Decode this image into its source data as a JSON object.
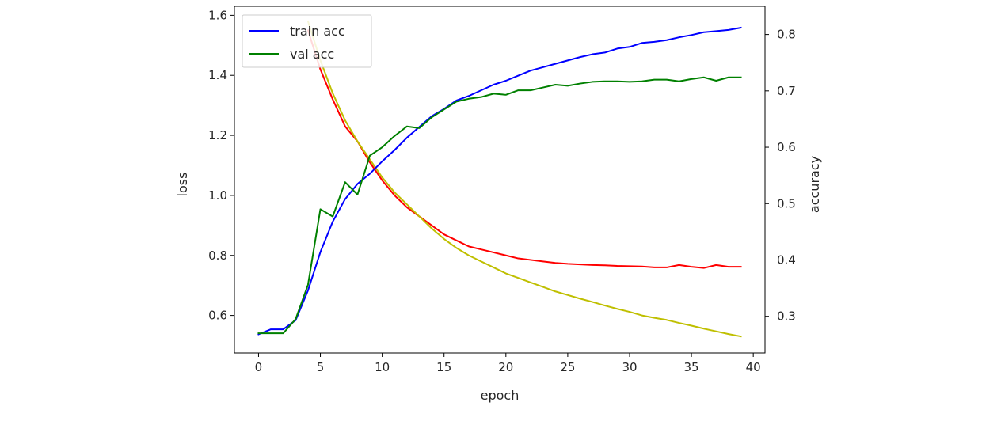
{
  "chart_data": {
    "type": "line",
    "xlabel": "epoch",
    "ylabel_left": "loss",
    "ylabel_right": "accuracy",
    "xlim": [
      -1.95,
      40.95
    ],
    "ylim_left": [
      0.475,
      1.63
    ],
    "ylim_right": [
      0.235,
      0.85
    ],
    "x_ticks": [
      0,
      5,
      10,
      15,
      20,
      25,
      30,
      35,
      40
    ],
    "y_ticks_left": [
      0.6,
      0.8,
      1.0,
      1.2,
      1.4,
      1.6
    ],
    "y_ticks_right": [
      0.3,
      0.4,
      0.5,
      0.6,
      0.7,
      0.8
    ],
    "grid": false,
    "legend_position": "top-left",
    "x": [
      0,
      1,
      2,
      3,
      4,
      5,
      6,
      7,
      8,
      9,
      10,
      11,
      12,
      13,
      14,
      15,
      16,
      17,
      18,
      19,
      20,
      21,
      22,
      23,
      24,
      25,
      26,
      27,
      28,
      29,
      30,
      31,
      32,
      33,
      34,
      35,
      36,
      37,
      38,
      39
    ],
    "series": [
      {
        "name": "",
        "axis": "left",
        "color": "#ff0000",
        "values": [
          null,
          null,
          null,
          null,
          1.55,
          1.42,
          1.32,
          1.23,
          1.18,
          1.11,
          1.05,
          1.0,
          0.96,
          0.93,
          0.9,
          0.87,
          0.85,
          0.83,
          0.82,
          0.81,
          0.8,
          0.79,
          0.785,
          0.78,
          0.775,
          0.772,
          0.77,
          0.768,
          0.767,
          0.765,
          0.764,
          0.763,
          0.76,
          0.76,
          0.768,
          0.762,
          0.758,
          0.768,
          0.762,
          0.762
        ]
      },
      {
        "name": "",
        "axis": "left",
        "color": "#bfbf00",
        "values": [
          null,
          null,
          null,
          null,
          1.58,
          1.45,
          1.34,
          1.25,
          1.18,
          1.12,
          1.06,
          1.01,
          0.97,
          0.93,
          0.89,
          0.855,
          0.825,
          0.8,
          0.78,
          0.76,
          0.74,
          0.725,
          0.71,
          0.695,
          0.68,
          0.668,
          0.656,
          0.645,
          0.633,
          0.622,
          0.612,
          0.6,
          0.592,
          0.585,
          0.575,
          0.566,
          0.556,
          0.547,
          0.538,
          0.53
        ]
      },
      {
        "name": "train acc",
        "axis": "right",
        "color": "#0000ff",
        "values": [
          0.268,
          0.277,
          0.277,
          0.293,
          0.346,
          0.414,
          0.468,
          0.508,
          0.535,
          0.553,
          0.575,
          0.595,
          0.617,
          0.636,
          0.655,
          0.668,
          0.683,
          0.691,
          0.701,
          0.711,
          0.718,
          0.727,
          0.736,
          0.742,
          0.748,
          0.754,
          0.76,
          0.765,
          0.768,
          0.775,
          0.778,
          0.785,
          0.787,
          0.79,
          0.795,
          0.799,
          0.804,
          0.806,
          0.808,
          0.812
        ]
      },
      {
        "name": "val acc",
        "axis": "right",
        "color": "#008000",
        "values": [
          0.27,
          0.27,
          0.27,
          0.295,
          0.356,
          0.49,
          0.477,
          0.538,
          0.516,
          0.585,
          0.6,
          0.62,
          0.637,
          0.634,
          0.653,
          0.667,
          0.681,
          0.686,
          0.689,
          0.695,
          0.693,
          0.701,
          0.701,
          0.706,
          0.711,
          0.709,
          0.713,
          0.716,
          0.717,
          0.717,
          0.716,
          0.717,
          0.72,
          0.72,
          0.717,
          0.721,
          0.724,
          0.718,
          0.724,
          0.724
        ]
      }
    ]
  }
}
